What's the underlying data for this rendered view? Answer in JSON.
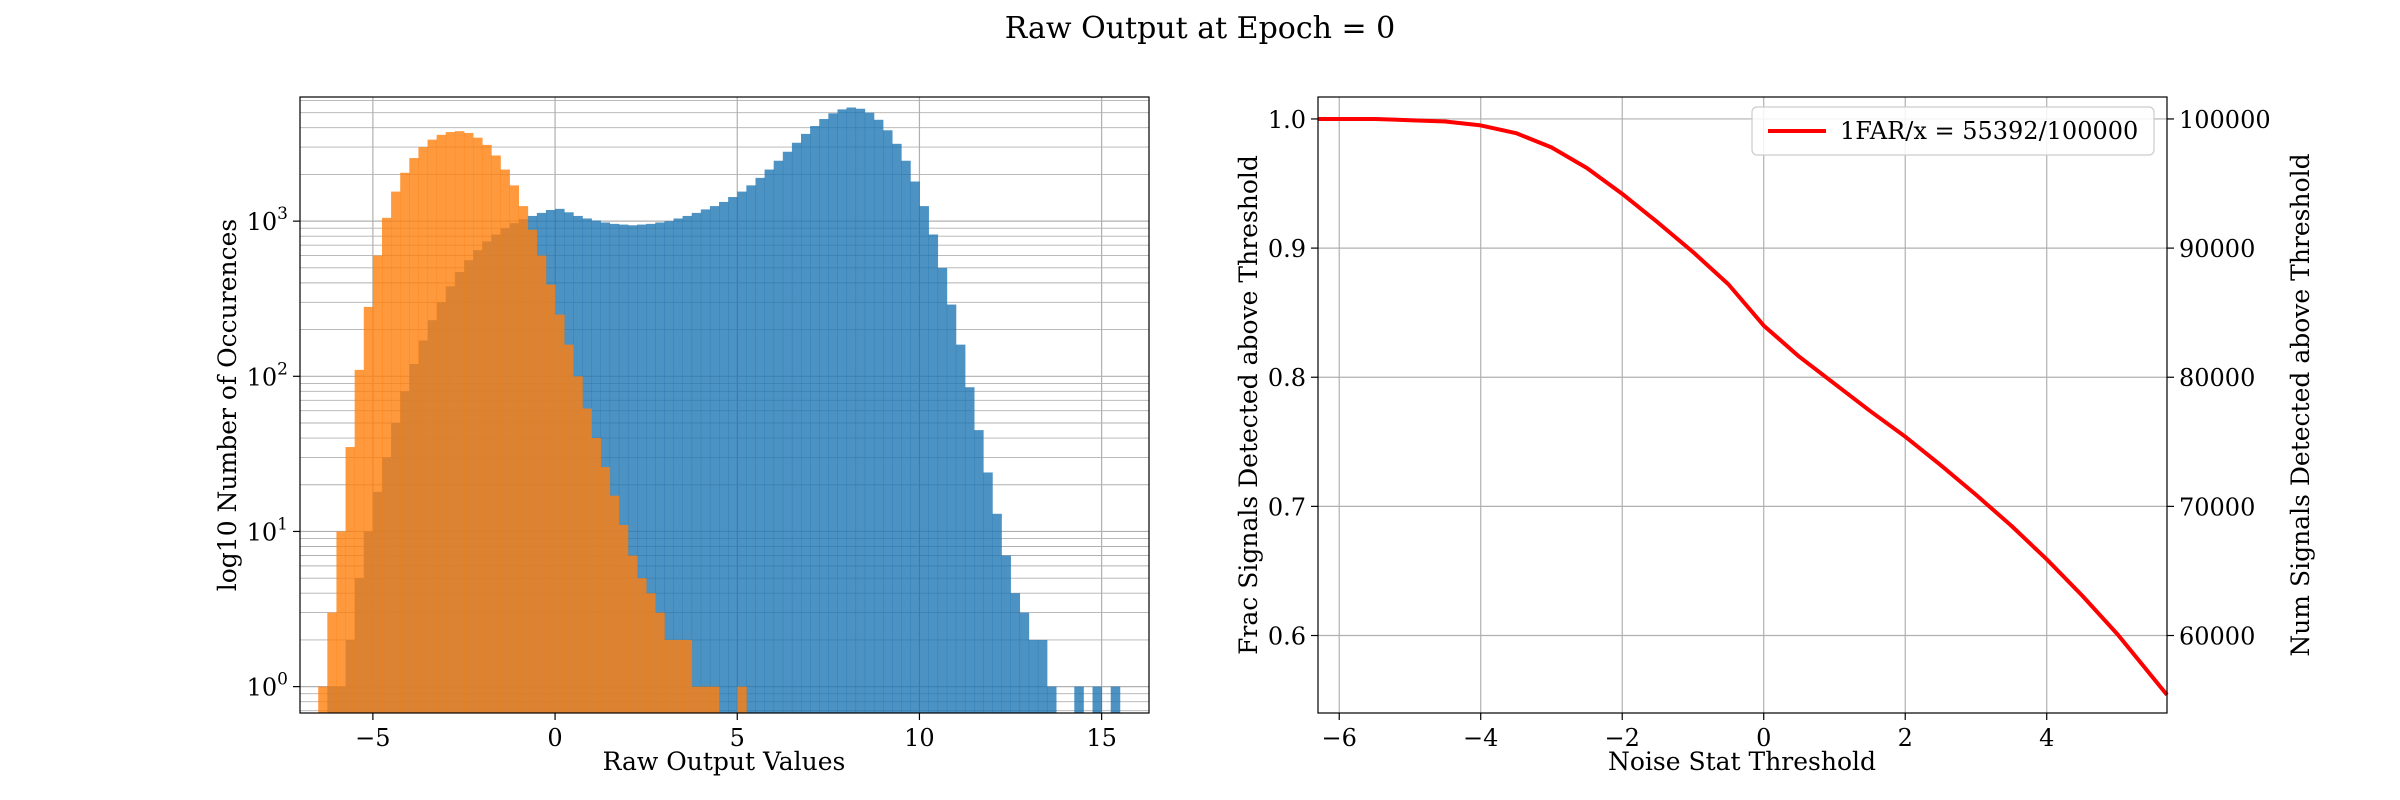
{
  "figure": {
    "title": "Raw Output at Epoch = 0",
    "colors": {
      "signal": "#1f77b4",
      "noise": "#ff7f0e",
      "curve": "#ff0000",
      "grid": "#b0b0b0"
    }
  },
  "chart_data": [
    {
      "type": "histogram",
      "title": "",
      "xlabel": "Raw Output Values",
      "ylabel": "log10 Number of Occurences",
      "xlim": [
        -7,
        16.3
      ],
      "ylim_log10": [
        -0.17,
        3.8
      ],
      "yscale": "log",
      "grid": true,
      "x_ticks": [
        {
          "value": -5,
          "label": "−5"
        },
        {
          "value": 0,
          "label": "0"
        },
        {
          "value": 5,
          "label": "5"
        },
        {
          "value": 10,
          "label": "10"
        },
        {
          "value": 15,
          "label": "15"
        }
      ],
      "y_ticks": [
        {
          "value": 1,
          "base": "10",
          "exp": "0"
        },
        {
          "value": 10,
          "base": "10",
          "exp": "1"
        },
        {
          "value": 100,
          "base": "10",
          "exp": "2"
        },
        {
          "value": 1000,
          "base": "10",
          "exp": "3"
        }
      ],
      "bin_width": 0.25,
      "series": [
        {
          "label": "",
          "color": "#1f77b4",
          "alpha": 0.8,
          "points": [
            [
              -6.25,
              1
            ],
            [
              -6.0,
              1
            ],
            [
              -5.75,
              2
            ],
            [
              -5.5,
              5
            ],
            [
              -5.25,
              10
            ],
            [
              -5.0,
              18
            ],
            [
              -4.75,
              30
            ],
            [
              -4.5,
              50
            ],
            [
              -4.25,
              80
            ],
            [
              -4.0,
              120
            ],
            [
              -3.75,
              170
            ],
            [
              -3.5,
              230
            ],
            [
              -3.25,
              300
            ],
            [
              -3.0,
              380
            ],
            [
              -2.75,
              470
            ],
            [
              -2.5,
              560
            ],
            [
              -2.25,
              650
            ],
            [
              -2.0,
              740
            ],
            [
              -1.75,
              820
            ],
            [
              -1.5,
              900
            ],
            [
              -1.25,
              970
            ],
            [
              -1.0,
              1030
            ],
            [
              -0.75,
              1080
            ],
            [
              -0.5,
              1130
            ],
            [
              -0.25,
              1180
            ],
            [
              0.0,
              1200
            ],
            [
              0.25,
              1140
            ],
            [
              0.5,
              1080
            ],
            [
              0.75,
              1040
            ],
            [
              1.0,
              1010
            ],
            [
              1.25,
              980
            ],
            [
              1.5,
              960
            ],
            [
              1.75,
              950
            ],
            [
              2.0,
              940
            ],
            [
              2.25,
              950
            ],
            [
              2.5,
              960
            ],
            [
              2.75,
              980
            ],
            [
              3.0,
              1000
            ],
            [
              3.25,
              1040
            ],
            [
              3.5,
              1080
            ],
            [
              3.75,
              1130
            ],
            [
              4.0,
              1190
            ],
            [
              4.25,
              1250
            ],
            [
              4.5,
              1330
            ],
            [
              4.75,
              1430
            ],
            [
              5.0,
              1550
            ],
            [
              5.25,
              1700
            ],
            [
              5.5,
              1900
            ],
            [
              5.75,
              2150
            ],
            [
              6.0,
              2450
            ],
            [
              6.25,
              2800
            ],
            [
              6.5,
              3200
            ],
            [
              6.75,
              3650
            ],
            [
              7.0,
              4100
            ],
            [
              7.25,
              4550
            ],
            [
              7.5,
              4950
            ],
            [
              7.75,
              5250
            ],
            [
              8.0,
              5400
            ],
            [
              8.25,
              5300
            ],
            [
              8.5,
              5000
            ],
            [
              8.75,
              4500
            ],
            [
              9.0,
              3850
            ],
            [
              9.25,
              3150
            ],
            [
              9.5,
              2450
            ],
            [
              9.75,
              1800
            ],
            [
              10.0,
              1250
            ],
            [
              10.25,
              820
            ],
            [
              10.5,
              500
            ],
            [
              10.75,
              290
            ],
            [
              11.0,
              160
            ],
            [
              11.25,
              85
            ],
            [
              11.5,
              45
            ],
            [
              11.75,
              24
            ],
            [
              12.0,
              13
            ],
            [
              12.25,
              7
            ],
            [
              12.5,
              4
            ],
            [
              12.75,
              3
            ],
            [
              13.0,
              2
            ],
            [
              13.25,
              2
            ],
            [
              13.5,
              1
            ],
            [
              14.25,
              1
            ],
            [
              14.75,
              1
            ],
            [
              15.25,
              1
            ]
          ]
        },
        {
          "label": "",
          "color": "#ff7f0e",
          "alpha": 0.8,
          "points": [
            [
              -6.5,
              1
            ],
            [
              -6.25,
              3
            ],
            [
              -6.0,
              10
            ],
            [
              -5.75,
              35
            ],
            [
              -5.5,
              110
            ],
            [
              -5.25,
              280
            ],
            [
              -5.0,
              600
            ],
            [
              -4.75,
              1050
            ],
            [
              -4.5,
              1550
            ],
            [
              -4.25,
              2050
            ],
            [
              -4.0,
              2550
            ],
            [
              -3.75,
              3000
            ],
            [
              -3.5,
              3350
            ],
            [
              -3.25,
              3600
            ],
            [
              -3.0,
              3750
            ],
            [
              -2.75,
              3800
            ],
            [
              -2.5,
              3700
            ],
            [
              -2.25,
              3450
            ],
            [
              -2.0,
              3100
            ],
            [
              -1.75,
              2650
            ],
            [
              -1.5,
              2150
            ],
            [
              -1.25,
              1700
            ],
            [
              -1.0,
              1250
            ],
            [
              -0.75,
              880
            ],
            [
              -0.5,
              600
            ],
            [
              -0.25,
              390
            ],
            [
              0.0,
              250
            ],
            [
              0.25,
              160
            ],
            [
              0.5,
              100
            ],
            [
              0.75,
              62
            ],
            [
              1.0,
              40
            ],
            [
              1.25,
              26
            ],
            [
              1.5,
              17
            ],
            [
              1.75,
              11
            ],
            [
              2.0,
              7
            ],
            [
              2.25,
              5
            ],
            [
              2.5,
              4
            ],
            [
              2.75,
              3
            ],
            [
              3.0,
              2
            ],
            [
              3.25,
              2
            ],
            [
              3.5,
              2
            ],
            [
              3.75,
              1
            ],
            [
              4.0,
              1
            ],
            [
              4.25,
              1
            ],
            [
              5.0,
              1
            ]
          ]
        }
      ]
    },
    {
      "type": "line",
      "title": "",
      "xlabel": "Noise Stat Threshold",
      "ylabel": "Frac Signals Detected above Threshold",
      "ylabel_right": "Num Signals Detected above Threshold",
      "xlim": [
        -6.3,
        5.7
      ],
      "ylim": [
        0.54,
        1.017
      ],
      "ylim_right": [
        54000,
        101700
      ],
      "grid": true,
      "legend": {
        "position": "top-right",
        "label": "1FAR/x = 55392/100000"
      },
      "x_ticks": [
        {
          "value": -6,
          "label": "−6"
        },
        {
          "value": -4,
          "label": "−4"
        },
        {
          "value": -2,
          "label": "−2"
        },
        {
          "value": 0,
          "label": "0"
        },
        {
          "value": 2,
          "label": "2"
        },
        {
          "value": 4,
          "label": "4"
        }
      ],
      "y_ticks": [
        {
          "value": 0.6,
          "label": "0.6"
        },
        {
          "value": 0.7,
          "label": "0.7"
        },
        {
          "value": 0.8,
          "label": "0.8"
        },
        {
          "value": 0.9,
          "label": "0.9"
        },
        {
          "value": 1.0,
          "label": "1.0"
        }
      ],
      "y_ticks_right": [
        {
          "value": 60000,
          "label": "60000"
        },
        {
          "value": 70000,
          "label": "70000"
        },
        {
          "value": 80000,
          "label": "80000"
        },
        {
          "value": 90000,
          "label": "90000"
        },
        {
          "value": 100000,
          "label": "100000"
        }
      ],
      "series": [
        {
          "name": "1FAR/x = 55392/100000",
          "color": "#ff0000",
          "x": [
            -6.3,
            -6.0,
            -5.5,
            -5.0,
            -4.5,
            -4.0,
            -3.5,
            -3.0,
            -2.5,
            -2.0,
            -1.5,
            -1.0,
            -0.5,
            0.0,
            0.5,
            1.0,
            1.5,
            2.0,
            2.5,
            3.0,
            3.5,
            4.0,
            4.5,
            5.0,
            5.7
          ],
          "y": [
            1.0,
            1.0,
            1.0,
            0.999,
            0.998,
            0.995,
            0.989,
            0.978,
            0.962,
            0.942,
            0.92,
            0.897,
            0.872,
            0.84,
            0.816,
            0.795,
            0.774,
            0.754,
            0.732,
            0.709,
            0.685,
            0.659,
            0.631,
            0.601,
            0.554
          ]
        }
      ]
    }
  ]
}
